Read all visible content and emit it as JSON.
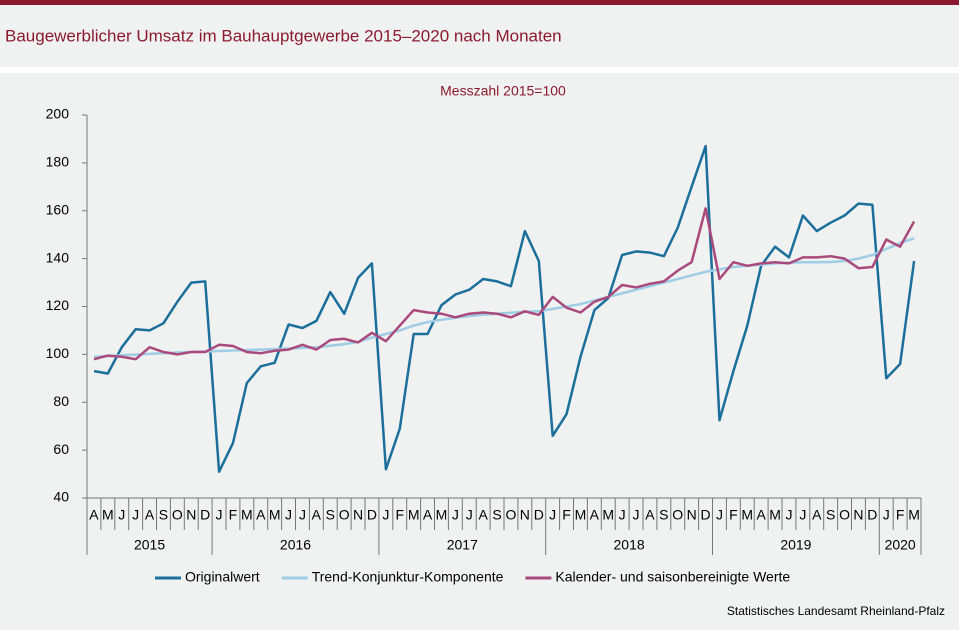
{
  "chart_data": {
    "type": "line",
    "title": "Baugewerblicher Umsatz im Bauhauptgewerbe 2015–2020 nach Monaten",
    "subtitle": "Messzahl 2015=100",
    "source": "Statistisches Landesamt Rheinland-Pfalz",
    "categories": [
      "A",
      "M",
      "J",
      "J",
      "A",
      "S",
      "O",
      "N",
      "D",
      "J",
      "F",
      "M",
      "A",
      "M",
      "J",
      "J",
      "A",
      "S",
      "O",
      "N",
      "D",
      "J",
      "F",
      "M",
      "A",
      "M",
      "J",
      "J",
      "A",
      "S",
      "O",
      "N",
      "D",
      "J",
      "F",
      "M",
      "A",
      "M",
      "J",
      "J",
      "A",
      "S",
      "O",
      "N",
      "D",
      "J",
      "F",
      "M",
      "A",
      "M",
      "J",
      "J",
      "A",
      "S",
      "O",
      "N",
      "D",
      "J",
      "F",
      "M"
    ],
    "groups": [
      "2015",
      "2016",
      "2017",
      "2018",
      "2019",
      "2020"
    ],
    "ylim": [
      40,
      200
    ],
    "yticks": [
      40,
      60,
      80,
      100,
      120,
      140,
      160,
      180,
      200
    ],
    "grid": false,
    "legend": "bottom",
    "series": [
      {
        "name": "Originalwert",
        "color": "#1b6f9b",
        "values": [
          93,
          92,
          103,
          110.5,
          110,
          113,
          122,
          130,
          130.5,
          51,
          63,
          88,
          95,
          96.5,
          112.5,
          111,
          114,
          126,
          117,
          132,
          138,
          52,
          69,
          108.5,
          108.5,
          120.5,
          125,
          127,
          131.5,
          130.5,
          128.5,
          151.5,
          139,
          66,
          75,
          99,
          118.5,
          123.5,
          141.5,
          143,
          142.5,
          141,
          153,
          170,
          187,
          72.5,
          93,
          112,
          137,
          145,
          140.5,
          158,
          151.5,
          155,
          158,
          163,
          162.5,
          90,
          96,
          139
        ]
      },
      {
        "name": "Trend-Konjunktur-Komponente",
        "color": "#9ecde5",
        "values": [
          99,
          99.3,
          99.6,
          99.9,
          100.2,
          100.5,
          100.8,
          101,
          101.2,
          101.4,
          101.6,
          101.8,
          102,
          102.2,
          102.4,
          102.7,
          103,
          103.6,
          104.3,
          105.2,
          107,
          108.5,
          110,
          112,
          113.5,
          114.5,
          115.3,
          116,
          116.6,
          117,
          117.4,
          117.8,
          118,
          119,
          120,
          121,
          122.5,
          124,
          125.5,
          127,
          128.5,
          130,
          131.5,
          133,
          134.5,
          135.5,
          136.5,
          137,
          137.5,
          138,
          138.3,
          138.5,
          138.5,
          138.6,
          139,
          140,
          141.5,
          144,
          146.5,
          148.5
        ]
      },
      {
        "name": "Kalender- und saisonbereinigte Werte",
        "color": "#a9497c",
        "values": [
          98,
          99.5,
          99,
          98,
          103,
          101,
          100,
          101,
          101,
          104,
          103.5,
          101,
          100.5,
          101.5,
          102,
          104,
          102,
          106,
          106.5,
          105,
          109,
          105.5,
          112,
          118.5,
          117.5,
          117,
          115.5,
          117,
          117.5,
          117,
          115.5,
          118,
          116.5,
          124,
          119.5,
          117.5,
          122,
          124,
          129,
          128,
          129.5,
          130.5,
          135,
          138.5,
          161,
          131.5,
          138.5,
          137,
          138,
          138.5,
          138,
          140.5,
          140.5,
          141,
          140,
          136,
          136.5,
          148,
          145,
          155.5
        ]
      }
    ]
  }
}
